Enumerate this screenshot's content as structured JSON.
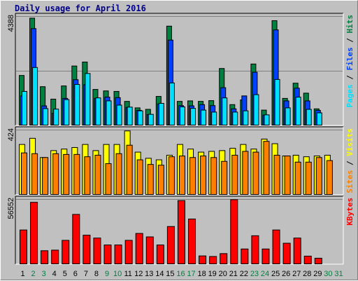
{
  "title": "Daily usage for April 2016",
  "colors": {
    "background": "#c0c0c0",
    "hits": "#008040",
    "files": "#0040ff",
    "pages": "#00e0ff",
    "visits": "#ffff00",
    "sites": "#ff8000",
    "kbytes": "#ff0000",
    "title": "#00008b",
    "weekend_label": "#008040",
    "weekday_label": "#000000"
  },
  "chart_data": [
    {
      "type": "bar",
      "panel": "hits-files-pages",
      "ymax_label": "4388",
      "ylim": [
        0,
        4388
      ],
      "categories": [
        "1",
        "2",
        "3",
        "4",
        "5",
        "6",
        "7",
        "8",
        "9",
        "10",
        "11",
        "12",
        "13",
        "14",
        "15",
        "16",
        "17",
        "18",
        "19",
        "20",
        "21",
        "22",
        "23",
        "24",
        "25",
        "26",
        "27",
        "28",
        "29",
        "30",
        "31"
      ],
      "legend": [
        "Pages",
        "Files",
        "Hits"
      ],
      "series": [
        {
          "name": "Hits",
          "color_key": "hits",
          "values": [
            2020,
            4320,
            1570,
            1070,
            1600,
            2400,
            2560,
            1460,
            1400,
            1380,
            980,
            720,
            660,
            1180,
            4000,
            980,
            1000,
            980,
            1010,
            2300,
            850,
            1040,
            2480,
            630,
            4220,
            1100,
            1710,
            1310,
            680,
            null,
            null
          ]
        },
        {
          "name": "Files",
          "color_key": "files",
          "values": [
            1200,
            3900,
            800,
            500,
            1100,
            1850,
            1650,
            1100,
            1150,
            1130,
            740,
            620,
            450,
            880,
            3440,
            810,
            800,
            850,
            810,
            1530,
            680,
            1200,
            2150,
            430,
            3850,
            1000,
            1510,
            1000,
            620,
            null,
            null
          ]
        },
        {
          "name": "Pages",
          "color_key": "pages",
          "values": [
            1380,
            2340,
            690,
            670,
            1050,
            1660,
            2100,
            1120,
            1000,
            830,
            750,
            600,
            460,
            900,
            1720,
            760,
            700,
            630,
            550,
            1120,
            550,
            600,
            1250,
            440,
            1860,
            720,
            1150,
            660,
            520,
            null,
            null
          ]
        }
      ]
    },
    {
      "type": "bar",
      "panel": "visits-sites",
      "ymax_label": "424",
      "ylim": [
        0,
        424
      ],
      "categories": [
        "1",
        "2",
        "3",
        "4",
        "5",
        "6",
        "7",
        "8",
        "9",
        "10",
        "11",
        "12",
        "13",
        "14",
        "15",
        "16",
        "17",
        "18",
        "19",
        "20",
        "21",
        "22",
        "23",
        "24",
        "25",
        "26",
        "27",
        "28",
        "29",
        "30",
        "31"
      ],
      "legend": [
        "Sites",
        "Visits"
      ],
      "series": [
        {
          "name": "Visits",
          "color_key": "visits",
          "values": [
            330,
            370,
            245,
            290,
            300,
            310,
            330,
            290,
            330,
            330,
            418,
            280,
            240,
            230,
            260,
            330,
            300,
            280,
            285,
            290,
            305,
            330,
            300,
            365,
            335,
            255,
            260,
            250,
            255,
            260,
            null
          ]
        },
        {
          "name": "Sites",
          "color_key": "sites",
          "values": [
            275,
            270,
            245,
            270,
            265,
            265,
            250,
            260,
            205,
            270,
            325,
            230,
            200,
            195,
            250,
            255,
            245,
            255,
            245,
            220,
            260,
            285,
            280,
            350,
            260,
            255,
            215,
            215,
            245,
            225,
            null
          ]
        }
      ]
    },
    {
      "type": "bar",
      "panel": "kbytes",
      "ymax_label": "56552",
      "ylim": [
        0,
        56552
      ],
      "categories": [
        "1",
        "2",
        "3",
        "4",
        "5",
        "6",
        "7",
        "8",
        "9",
        "10",
        "11",
        "12",
        "13",
        "14",
        "15",
        "16",
        "17",
        "18",
        "19",
        "20",
        "21",
        "22",
        "23",
        "24",
        "25",
        "26",
        "27",
        "28",
        "29",
        "30",
        "31"
      ],
      "legend": [
        "KBytes"
      ],
      "series": [
        {
          "name": "KBytes",
          "color_key": "kbytes",
          "values": [
            30000,
            54000,
            12000,
            12500,
            21000,
            43500,
            25500,
            23000,
            17000,
            17000,
            21000,
            27000,
            24000,
            17000,
            33000,
            55500,
            39500,
            7500,
            7000,
            9500,
            56300,
            13500,
            25000,
            13500,
            30000,
            18500,
            23000,
            7300,
            5500,
            null,
            null
          ]
        }
      ]
    }
  ],
  "x_labels": [
    {
      "text": "1",
      "weekend": false
    },
    {
      "text": "2",
      "weekend": true
    },
    {
      "text": "3",
      "weekend": true
    },
    {
      "text": "4",
      "weekend": false
    },
    {
      "text": "5",
      "weekend": false
    },
    {
      "text": "6",
      "weekend": false
    },
    {
      "text": "7",
      "weekend": false
    },
    {
      "text": "8",
      "weekend": false
    },
    {
      "text": "9",
      "weekend": true
    },
    {
      "text": "10",
      "weekend": true
    },
    {
      "text": "11",
      "weekend": false
    },
    {
      "text": "12",
      "weekend": false
    },
    {
      "text": "13",
      "weekend": false
    },
    {
      "text": "14",
      "weekend": false
    },
    {
      "text": "15",
      "weekend": false
    },
    {
      "text": "16",
      "weekend": true
    },
    {
      "text": "17",
      "weekend": true
    },
    {
      "text": "18",
      "weekend": false
    },
    {
      "text": "19",
      "weekend": false
    },
    {
      "text": "20",
      "weekend": false
    },
    {
      "text": "21",
      "weekend": false
    },
    {
      "text": "22",
      "weekend": false
    },
    {
      "text": "23",
      "weekend": true
    },
    {
      "text": "24",
      "weekend": true
    },
    {
      "text": "25",
      "weekend": false
    },
    {
      "text": "26",
      "weekend": false
    },
    {
      "text": "27",
      "weekend": false
    },
    {
      "text": "28",
      "weekend": false
    },
    {
      "text": "29",
      "weekend": false
    },
    {
      "text": "30",
      "weekend": true
    },
    {
      "text": "31",
      "weekend": true
    }
  ]
}
